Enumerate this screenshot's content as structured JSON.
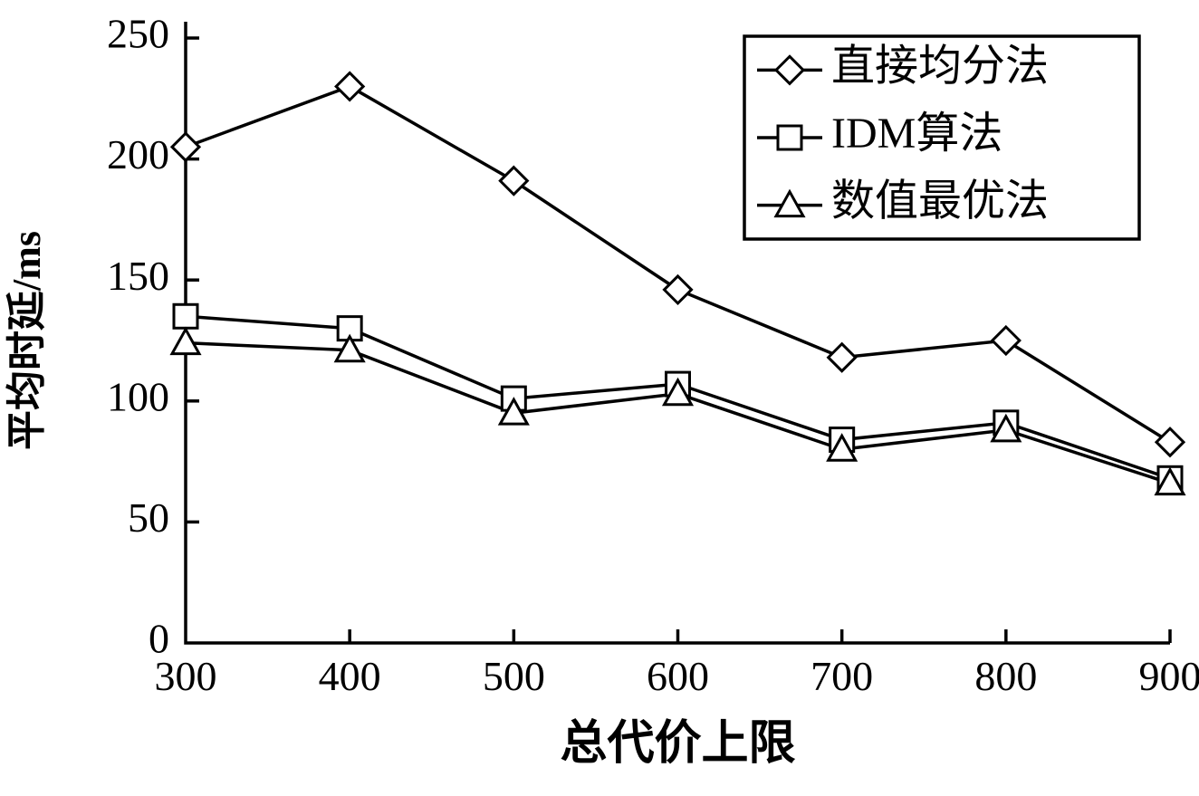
{
  "figure": {
    "kind": "academic-line-chart",
    "background_color": "#ffffff",
    "line_color": "#000000",
    "marker_fill": "#ffffff"
  },
  "chart_data": {
    "type": "line",
    "title": "",
    "xlabel": "总代价上限",
    "ylabel": "平均时延/ms",
    "x": [
      300,
      400,
      500,
      600,
      700,
      800,
      900
    ],
    "xticks": [
      300,
      400,
      500,
      600,
      700,
      800,
      900
    ],
    "yticks": [
      0,
      50,
      100,
      150,
      200,
      250
    ],
    "xlim": [
      300,
      900
    ],
    "ylim": [
      0,
      250
    ],
    "grid": false,
    "legend_position": "top-right",
    "series": [
      {
        "name": "直接均分法",
        "marker": "diamond",
        "color": "#000000",
        "values": [
          205,
          230,
          191,
          146,
          118,
          125,
          83
        ]
      },
      {
        "name": "IDM算法",
        "marker": "square",
        "color": "#000000",
        "values": [
          135,
          130,
          101,
          107,
          84,
          91,
          68
        ]
      },
      {
        "name": "数值最优法",
        "marker": "triangle",
        "color": "#000000",
        "values": [
          124,
          121,
          95,
          103,
          80,
          88,
          66
        ]
      }
    ]
  }
}
